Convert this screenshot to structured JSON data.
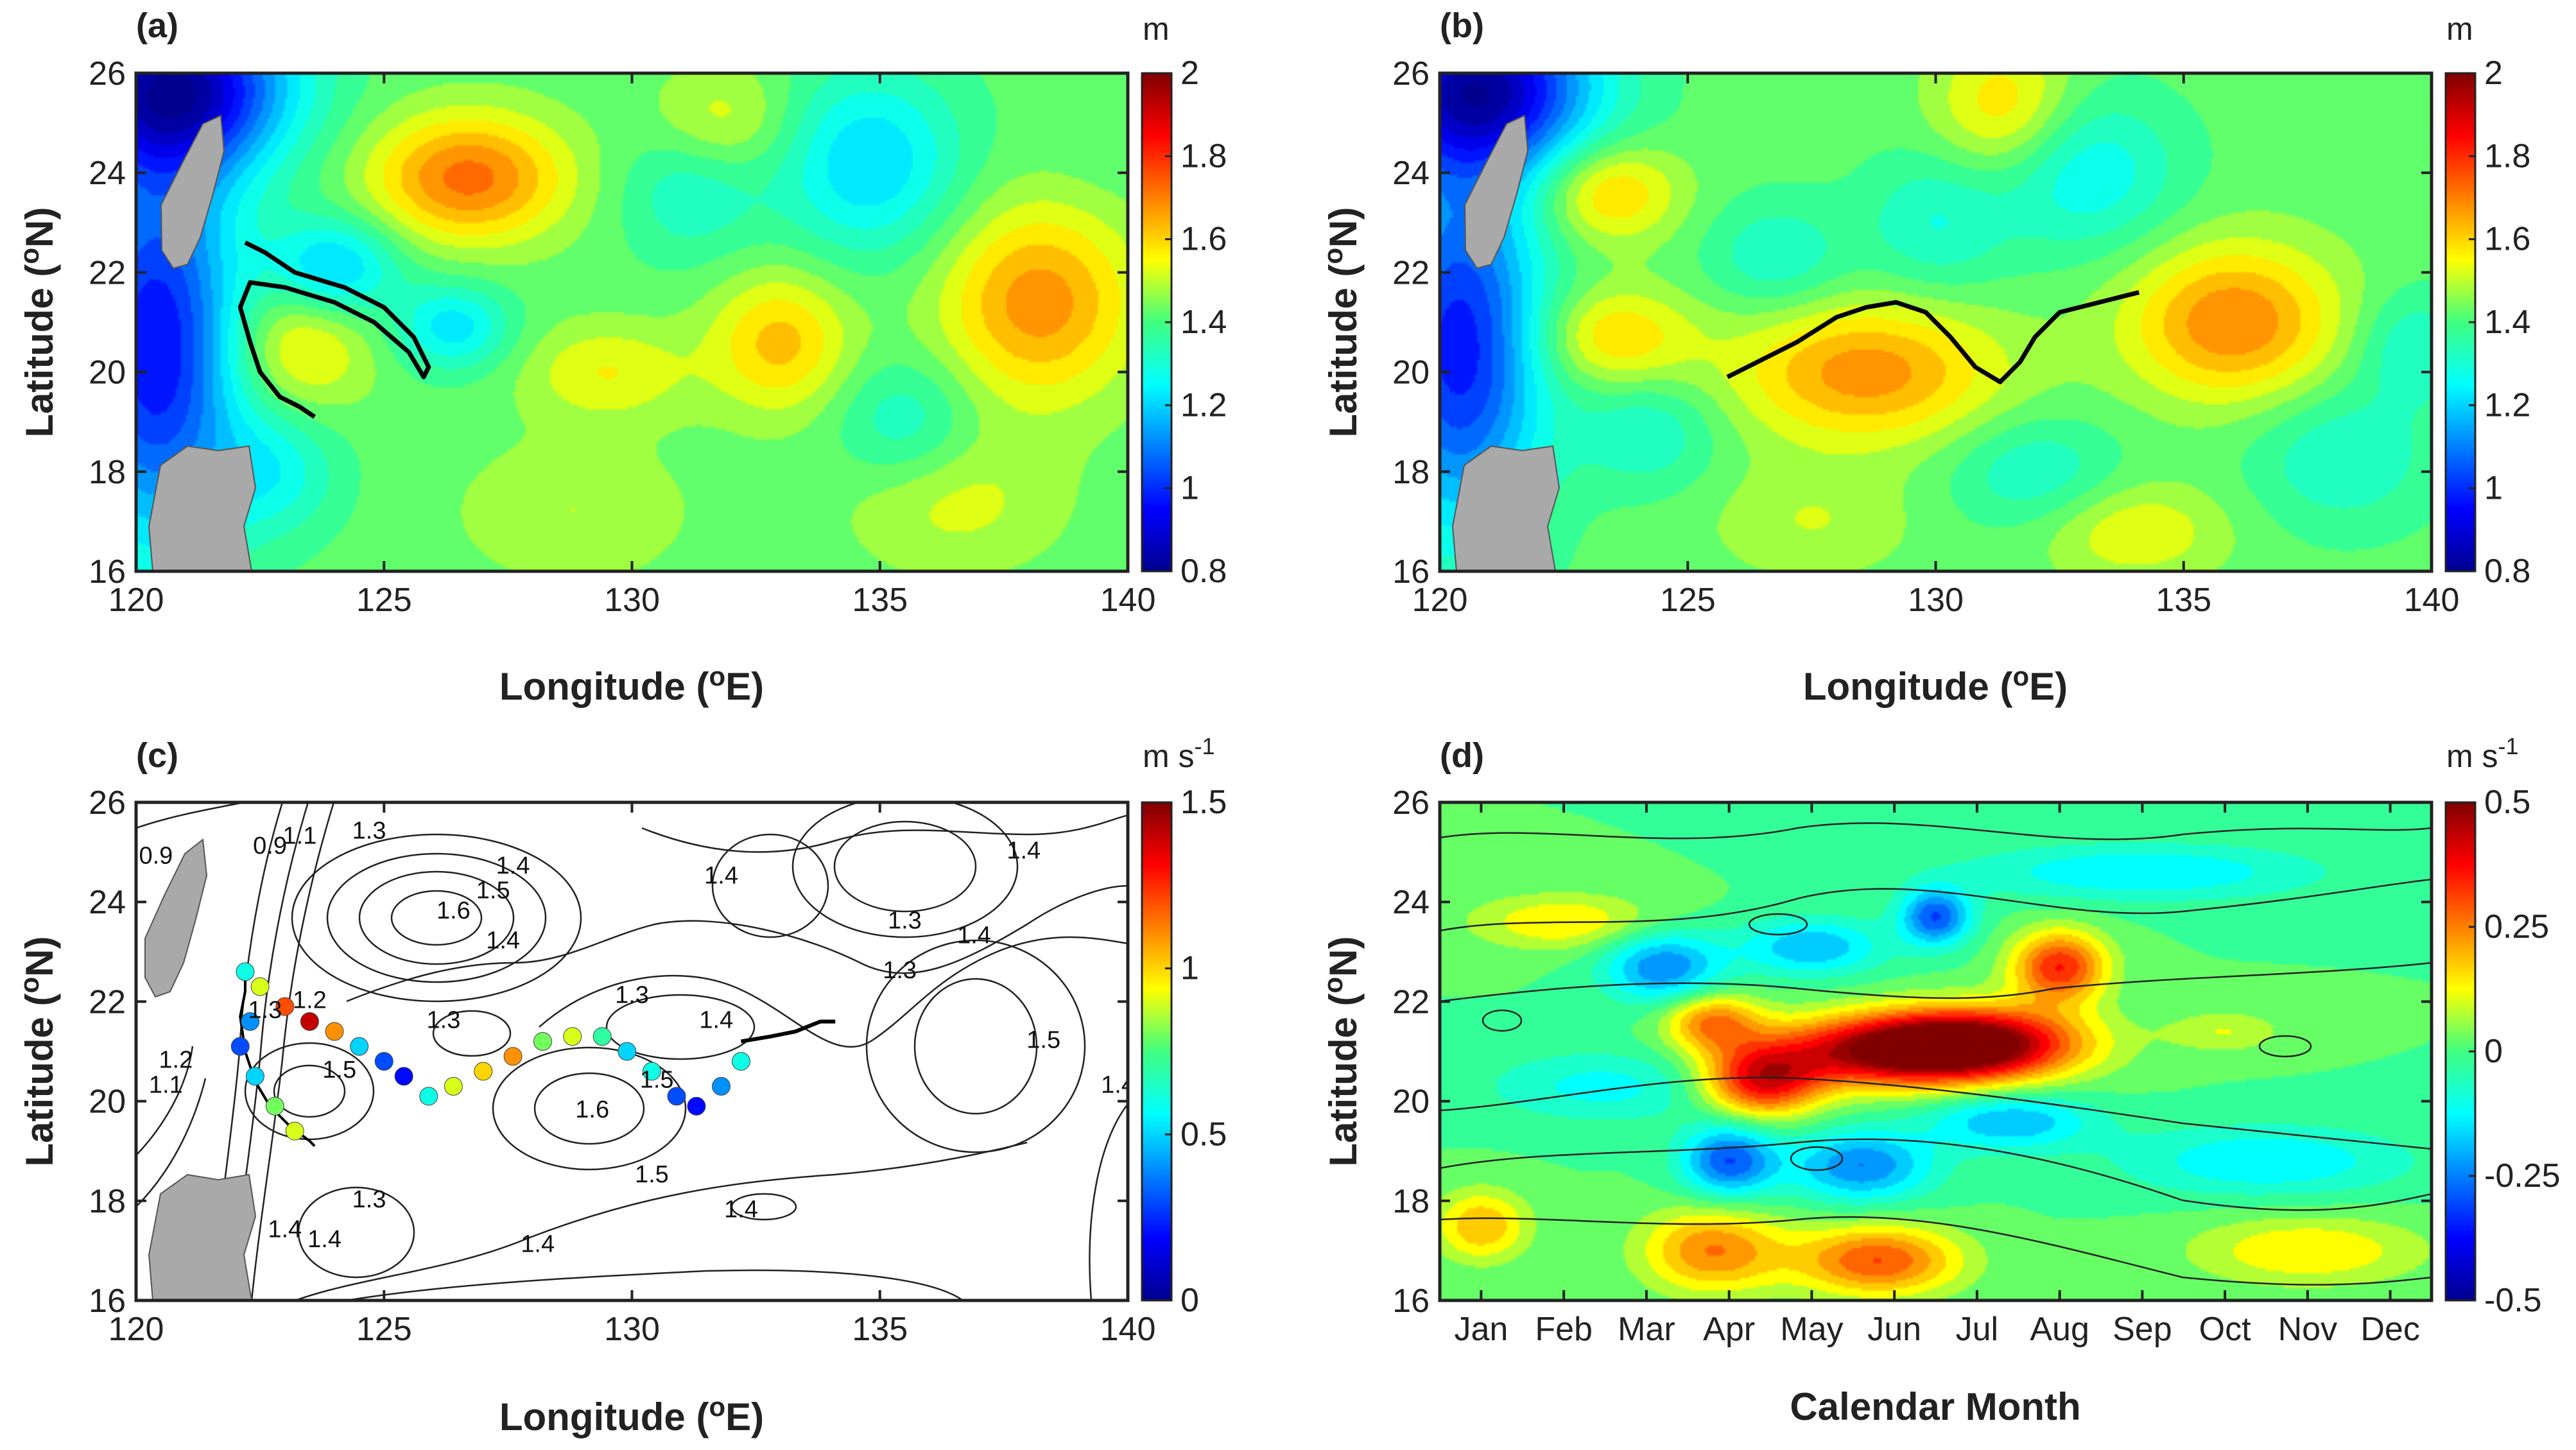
{
  "chart_data": [
    {
      "panel": "(a)",
      "type": "heatmap",
      "description_units": "m",
      "xlabel": "Longitude (oE)",
      "ylabel": "Latitude (oN)",
      "xticks": [
        120,
        125,
        130,
        135,
        140
      ],
      "xtick_labels": [
        "120",
        "125",
        "130",
        "135",
        "140"
      ],
      "yticks": [
        16,
        18,
        20,
        22,
        24,
        26
      ],
      "ytick_labels": [
        "16",
        "18",
        "20",
        "22",
        "24",
        "26"
      ],
      "xlim": [
        120,
        140
      ],
      "ylim": [
        16,
        26
      ],
      "colorbar": {
        "unit": "m",
        "min": 0.8,
        "max": 2,
        "ticks": [
          0.8,
          1,
          1.2,
          1.4,
          1.6,
          1.8,
          2
        ],
        "tick_labels": [
          "0.8",
          "1",
          "1.2",
          "1.4",
          "1.6",
          "1.8",
          "2"
        ]
      },
      "base": 1.42,
      "features": [
        {
          "lon": 120.8,
          "lat": 25.7,
          "value": 0.85,
          "sx": 1.6,
          "sy": 1.2
        },
        {
          "lon": 120.4,
          "lat": 20.5,
          "value": 0.95,
          "sx": 1.2,
          "sy": 2.8
        },
        {
          "lon": 126.7,
          "lat": 23.9,
          "value": 1.72,
          "sx": 1.4,
          "sy": 0.9
        },
        {
          "lon": 124.0,
          "lat": 22.1,
          "value": 1.18,
          "sx": 0.9,
          "sy": 0.7
        },
        {
          "lon": 123.3,
          "lat": 20.5,
          "value": 1.58,
          "sx": 1.0,
          "sy": 0.9
        },
        {
          "lon": 126.4,
          "lat": 20.9,
          "value": 1.22,
          "sx": 0.8,
          "sy": 0.6
        },
        {
          "lon": 133.0,
          "lat": 20.6,
          "value": 1.62,
          "sx": 1.0,
          "sy": 1.0
        },
        {
          "lon": 129.5,
          "lat": 20.0,
          "value": 1.55,
          "sx": 1.2,
          "sy": 0.7
        },
        {
          "lon": 134.8,
          "lat": 24.2,
          "value": 1.2,
          "sx": 1.3,
          "sy": 1.3
        },
        {
          "lon": 131.2,
          "lat": 23.7,
          "value": 1.3,
          "sx": 1.0,
          "sy": 1.0
        },
        {
          "lon": 138.2,
          "lat": 21.4,
          "value": 1.68,
          "sx": 1.4,
          "sy": 1.4
        },
        {
          "lon": 131.8,
          "lat": 25.0,
          "value": 1.55,
          "sx": 1.0,
          "sy": 0.8
        },
        {
          "lon": 128.8,
          "lat": 17.2,
          "value": 1.5,
          "sx": 1.6,
          "sy": 1.0
        },
        {
          "lon": 136.5,
          "lat": 17.4,
          "value": 1.52,
          "sx": 1.5,
          "sy": 1.0
        },
        {
          "lon": 122.8,
          "lat": 18.0,
          "value": 1.28,
          "sx": 0.9,
          "sy": 0.9
        },
        {
          "lon": 135.5,
          "lat": 19.0,
          "value": 1.3,
          "sx": 1.0,
          "sy": 0.9
        },
        {
          "lon": 139.5,
          "lat": 24.5,
          "value": 1.4,
          "sx": 1.0,
          "sy": 1.0
        }
      ],
      "track": [
        [
          122.2,
          22.6
        ],
        [
          122.6,
          22.4
        ],
        [
          123.2,
          22.0
        ],
        [
          124.2,
          21.7
        ],
        [
          125.0,
          21.3
        ],
        [
          125.6,
          20.7
        ],
        [
          125.9,
          20.1
        ],
        [
          125.8,
          19.9
        ],
        [
          125.5,
          20.4
        ],
        [
          124.8,
          21.0
        ],
        [
          124.0,
          21.4
        ],
        [
          123.0,
          21.7
        ],
        [
          122.3,
          21.8
        ],
        [
          122.1,
          21.3
        ],
        [
          122.3,
          20.6
        ],
        [
          122.5,
          20.0
        ],
        [
          122.9,
          19.5
        ],
        [
          123.3,
          19.3
        ],
        [
          123.6,
          19.1
        ]
      ]
    },
    {
      "panel": "(b)",
      "type": "heatmap",
      "xlabel": "Longitude (oE)",
      "ylabel": "Latitude (oN)",
      "xticks": [
        120,
        125,
        130,
        135,
        140
      ],
      "xtick_labels": [
        "120",
        "125",
        "130",
        "135",
        "140"
      ],
      "yticks": [
        16,
        18,
        20,
        22,
        24,
        26
      ],
      "ytick_labels": [
        "16",
        "18",
        "20",
        "22",
        "24",
        "26"
      ],
      "xlim": [
        120,
        140
      ],
      "ylim": [
        16,
        26
      ],
      "colorbar": {
        "unit": "m",
        "min": 0.8,
        "max": 2,
        "ticks": [
          0.8,
          1,
          1.2,
          1.4,
          1.6,
          1.8,
          2
        ],
        "tick_labels": [
          "0.8",
          "1",
          "1.2",
          "1.4",
          "1.6",
          "1.8",
          "2"
        ]
      },
      "base": 1.42,
      "features": [
        {
          "lon": 120.8,
          "lat": 25.7,
          "value": 0.85,
          "sx": 1.6,
          "sy": 1.2
        },
        {
          "lon": 120.4,
          "lat": 20.5,
          "value": 0.97,
          "sx": 1.2,
          "sy": 2.6
        },
        {
          "lon": 123.4,
          "lat": 23.6,
          "value": 1.62,
          "sx": 1.0,
          "sy": 0.7
        },
        {
          "lon": 123.5,
          "lat": 20.7,
          "value": 1.6,
          "sx": 1.1,
          "sy": 0.7
        },
        {
          "lon": 128.6,
          "lat": 20.0,
          "value": 1.68,
          "sx": 1.9,
          "sy": 1.0
        },
        {
          "lon": 131.4,
          "lat": 25.3,
          "value": 1.6,
          "sx": 1.0,
          "sy": 1.0
        },
        {
          "lon": 136.0,
          "lat": 21.0,
          "value": 1.7,
          "sx": 1.5,
          "sy": 1.1
        },
        {
          "lon": 126.8,
          "lat": 22.3,
          "value": 1.3,
          "sx": 1.0,
          "sy": 0.8
        },
        {
          "lon": 133.0,
          "lat": 24.0,
          "value": 1.25,
          "sx": 1.3,
          "sy": 1.1
        },
        {
          "lon": 130.0,
          "lat": 23.0,
          "value": 1.3,
          "sx": 1.0,
          "sy": 1.0
        },
        {
          "lon": 124.2,
          "lat": 18.8,
          "value": 1.3,
          "sx": 1.0,
          "sy": 0.8
        },
        {
          "lon": 132.0,
          "lat": 18.0,
          "value": 1.3,
          "sx": 1.2,
          "sy": 0.8
        },
        {
          "lon": 138.2,
          "lat": 18.3,
          "value": 1.3,
          "sx": 1.3,
          "sy": 1.0
        },
        {
          "lon": 127.5,
          "lat": 17.0,
          "value": 1.5,
          "sx": 1.4,
          "sy": 0.8
        },
        {
          "lon": 134.0,
          "lat": 16.8,
          "value": 1.55,
          "sx": 1.3,
          "sy": 0.7
        },
        {
          "lon": 139.6,
          "lat": 20.5,
          "value": 1.3,
          "sx": 0.8,
          "sy": 0.8
        }
      ],
      "track": [
        [
          125.8,
          19.9
        ],
        [
          126.4,
          20.2
        ],
        [
          127.2,
          20.6
        ],
        [
          128.0,
          21.1
        ],
        [
          128.6,
          21.3
        ],
        [
          129.2,
          21.4
        ],
        [
          129.8,
          21.2
        ],
        [
          130.3,
          20.7
        ],
        [
          130.8,
          20.1
        ],
        [
          131.3,
          19.8
        ],
        [
          131.7,
          20.2
        ],
        [
          132.0,
          20.7
        ],
        [
          132.5,
          21.2
        ],
        [
          133.3,
          21.4
        ],
        [
          134.1,
          21.6
        ]
      ]
    },
    {
      "panel": "(c)",
      "type": "contour",
      "xlabel": "Longitude (oE)",
      "ylabel": "Latitude (oN)",
      "xticks": [
        120,
        125,
        130,
        135,
        140
      ],
      "xtick_labels": [
        "120",
        "125",
        "130",
        "135",
        "140"
      ],
      "yticks": [
        16,
        18,
        20,
        22,
        24,
        26
      ],
      "ytick_labels": [
        "16",
        "18",
        "20",
        "22",
        "24",
        "26"
      ],
      "xlim": [
        120,
        140
      ],
      "ylim": [
        16,
        26
      ],
      "colorbar": {
        "unit": "m s-1",
        "min": 0,
        "max": 1.5,
        "ticks": [
          0,
          0.5,
          1,
          1.5
        ],
        "tick_labels": [
          "0",
          "0.5",
          "1",
          "1.5"
        ]
      },
      "contour_labels": [
        {
          "text": "0.9",
          "lon": 120.4,
          "lat": 24.9
        },
        {
          "text": "0.9",
          "lon": 122.7,
          "lat": 25.1
        },
        {
          "text": "1.1",
          "lon": 123.3,
          "lat": 25.3
        },
        {
          "text": "1.3",
          "lon": 124.7,
          "lat": 25.4
        },
        {
          "text": "1.4",
          "lon": 127.6,
          "lat": 24.7
        },
        {
          "text": "1.5",
          "lon": 127.2,
          "lat": 24.2
        },
        {
          "text": "1.6",
          "lon": 126.4,
          "lat": 23.8
        },
        {
          "text": "1.4",
          "lon": 127.4,
          "lat": 23.2
        },
        {
          "text": "1.4",
          "lon": 131.8,
          "lat": 24.5
        },
        {
          "text": "1.4",
          "lon": 137.9,
          "lat": 25.0
        },
        {
          "text": "1.3",
          "lon": 135.5,
          "lat": 23.6
        },
        {
          "text": "1.4",
          "lon": 136.9,
          "lat": 23.3
        },
        {
          "text": "1.3",
          "lon": 135.4,
          "lat": 22.6
        },
        {
          "text": "1.3",
          "lon": 130.0,
          "lat": 22.1
        },
        {
          "text": "1.4",
          "lon": 131.7,
          "lat": 21.6
        },
        {
          "text": "1.3",
          "lon": 126.2,
          "lat": 21.6
        },
        {
          "text": "1.2",
          "lon": 123.5,
          "lat": 22.0
        },
        {
          "text": "1.3",
          "lon": 122.6,
          "lat": 21.8
        },
        {
          "text": "1.5",
          "lon": 124.1,
          "lat": 20.6
        },
        {
          "text": "1.6",
          "lon": 129.2,
          "lat": 19.8
        },
        {
          "text": "1.5",
          "lon": 130.5,
          "lat": 20.4
        },
        {
          "text": "1.5",
          "lon": 138.3,
          "lat": 21.2
        },
        {
          "text": "1.4",
          "lon": 139.8,
          "lat": 20.3
        },
        {
          "text": "1.2",
          "lon": 120.8,
          "lat": 20.8
        },
        {
          "text": "1.1",
          "lon": 120.6,
          "lat": 20.3
        },
        {
          "text": "1.5",
          "lon": 130.4,
          "lat": 18.5
        },
        {
          "text": "1.4",
          "lon": 132.2,
          "lat": 17.8
        },
        {
          "text": "1.3",
          "lon": 124.7,
          "lat": 18.0
        },
        {
          "text": "1.4",
          "lon": 123.0,
          "lat": 17.4
        },
        {
          "text": "1.4",
          "lon": 123.8,
          "lat": 17.2
        },
        {
          "text": "1.4",
          "lon": 128.1,
          "lat": 17.1
        }
      ],
      "track": [
        [
          122.2,
          22.6
        ],
        [
          122.2,
          22.2
        ],
        [
          122.1,
          21.7
        ],
        [
          122.2,
          21.0
        ],
        [
          122.4,
          20.4
        ],
        [
          122.7,
          19.9
        ],
        [
          123.1,
          19.5
        ],
        [
          123.5,
          19.2
        ],
        [
          123.6,
          19.1
        ]
      ],
      "track_points": [
        [
          122.2,
          22.6,
          0.6
        ],
        [
          122.5,
          22.3,
          0.9
        ],
        [
          123.0,
          21.9,
          1.2
        ],
        [
          123.5,
          21.6,
          1.4
        ],
        [
          124.0,
          21.4,
          1.1
        ],
        [
          124.5,
          21.1,
          0.5
        ],
        [
          125.0,
          20.8,
          0.3
        ],
        [
          125.4,
          20.5,
          0.2
        ],
        [
          125.9,
          20.1,
          0.6
        ],
        [
          126.4,
          20.3,
          0.9
        ],
        [
          127.0,
          20.6,
          1.0
        ],
        [
          127.6,
          20.9,
          1.1
        ],
        [
          128.2,
          21.2,
          0.8
        ],
        [
          128.8,
          21.3,
          0.9
        ],
        [
          129.4,
          21.3,
          0.7
        ],
        [
          129.9,
          21.0,
          0.5
        ],
        [
          130.4,
          20.6,
          0.6
        ],
        [
          130.9,
          20.1,
          0.3
        ],
        [
          131.3,
          19.9,
          0.2
        ],
        [
          131.8,
          20.3,
          0.4
        ],
        [
          132.2,
          20.8,
          0.6
        ],
        [
          122.3,
          21.6,
          0.4
        ],
        [
          122.1,
          21.1,
          0.3
        ],
        [
          122.4,
          20.5,
          0.5
        ],
        [
          122.8,
          19.9,
          0.8
        ],
        [
          123.2,
          19.4,
          0.9
        ]
      ],
      "black_track": [
        [
          132.2,
          21.2
        ],
        [
          132.8,
          21.3
        ],
        [
          133.3,
          21.4
        ],
        [
          133.8,
          21.6
        ],
        [
          134.1,
          21.6
        ]
      ]
    },
    {
      "panel": "(d)",
      "type": "heatmap",
      "xlabel": "Calendar Month",
      "ylabel": "Latitude (oN)",
      "categories": [
        "Jan",
        "Feb",
        "Mar",
        "Apr",
        "May",
        "Jun",
        "Jul",
        "Aug",
        "Sep",
        "Oct",
        "Nov",
        "Dec"
      ],
      "yticks": [
        16,
        18,
        20,
        22,
        24,
        26
      ],
      "ytick_labels": [
        "16",
        "18",
        "20",
        "22",
        "24",
        "26"
      ],
      "ylim": [
        16,
        26
      ],
      "colorbar": {
        "unit": "m s-1",
        "min": -0.5,
        "max": 0.5,
        "ticks": [
          -0.5,
          -0.25,
          0,
          0.25,
          0.5
        ],
        "tick_labels": [
          "-0.5",
          "-0.25",
          "0",
          "0.25",
          "0.5"
        ]
      },
      "base": 0.0,
      "features": [
        {
          "month": 5.0,
          "lat": 21.0,
          "value": 0.45,
          "sx": 1.1,
          "sy": 0.5
        },
        {
          "month": 6.0,
          "lat": 21.2,
          "value": 0.4,
          "sx": 0.9,
          "sy": 0.5
        },
        {
          "month": 3.4,
          "lat": 20.4,
          "value": 0.38,
          "sx": 0.5,
          "sy": 0.5
        },
        {
          "month": 2.8,
          "lat": 21.6,
          "value": 0.25,
          "sx": 0.4,
          "sy": 0.4
        },
        {
          "month": 7.0,
          "lat": 22.7,
          "value": 0.35,
          "sx": 0.4,
          "sy": 0.5
        },
        {
          "month": 3.0,
          "lat": 18.8,
          "value": -0.3,
          "sx": 0.4,
          "sy": 0.5
        },
        {
          "month": 4.6,
          "lat": 18.7,
          "value": -0.25,
          "sx": 0.6,
          "sy": 0.5
        },
        {
          "month": 6.4,
          "lat": 19.6,
          "value": -0.2,
          "sx": 0.7,
          "sy": 0.4
        },
        {
          "month": 2.2,
          "lat": 22.7,
          "value": -0.25,
          "sx": 0.5,
          "sy": 0.5
        },
        {
          "month": 4.0,
          "lat": 23.1,
          "value": -0.2,
          "sx": 0.6,
          "sy": 0.4
        },
        {
          "month": 5.5,
          "lat": 23.7,
          "value": -0.3,
          "sx": 0.3,
          "sy": 0.4
        },
        {
          "month": 2.8,
          "lat": 17.0,
          "value": 0.25,
          "sx": 0.6,
          "sy": 0.6
        },
        {
          "month": 4.8,
          "lat": 16.8,
          "value": 0.3,
          "sx": 0.7,
          "sy": 0.5
        },
        {
          "month": 0.0,
          "lat": 17.5,
          "value": 0.2,
          "sx": 0.4,
          "sy": 0.5
        },
        {
          "month": 1.0,
          "lat": 23.6,
          "value": 0.15,
          "sx": 0.8,
          "sy": 0.4
        },
        {
          "month": 9.0,
          "lat": 21.4,
          "value": 0.1,
          "sx": 0.5,
          "sy": 0.3
        },
        {
          "month": 10.0,
          "lat": 17.0,
          "value": 0.15,
          "sx": 1.0,
          "sy": 0.5
        },
        {
          "month": 8.0,
          "lat": 24.6,
          "value": -0.15,
          "sx": 1.5,
          "sy": 0.4
        },
        {
          "month": 9.5,
          "lat": 18.8,
          "value": -0.15,
          "sx": 1.2,
          "sy": 0.5
        },
        {
          "month": 1.5,
          "lat": 20.3,
          "value": -0.12,
          "sx": 1.0,
          "sy": 0.5
        }
      ]
    }
  ],
  "panels": {
    "a": {
      "label": "(a)",
      "unit": "m"
    },
    "b": {
      "label": "(b)",
      "unit": "m"
    },
    "c": {
      "label": "(c)",
      "unit_base": "m s",
      "unit_exp": "-1"
    },
    "d": {
      "label": "(d)",
      "unit_base": "m s",
      "unit_exp": "-1"
    }
  },
  "axis_text": {
    "lon_pre": "Longitude (",
    "lon_sup": "o",
    "lon_post": "E)",
    "lat_pre": "Latitude (",
    "lat_sup": "o",
    "lat_post": "N)",
    "month_label": "Calendar Month"
  },
  "colors": {
    "land": "#a9a9a9",
    "track": "#000000"
  }
}
